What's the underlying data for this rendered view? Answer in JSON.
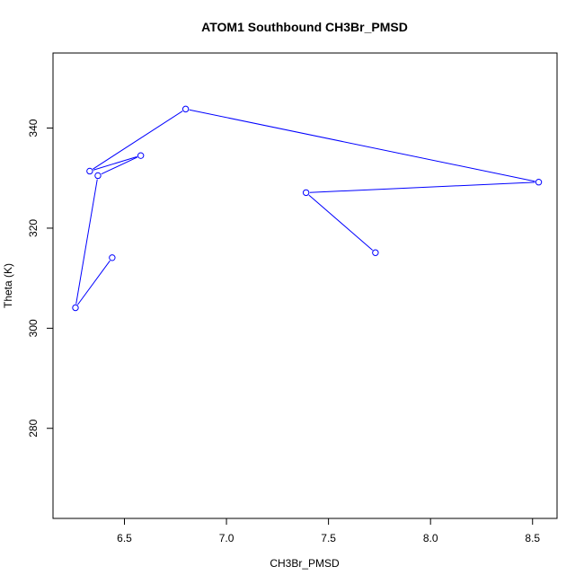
{
  "chart_data": {
    "type": "line",
    "title": "ATOM1 Southbound CH3Br_PMSD",
    "xlabel": "CH3Br_PMSD",
    "ylabel": "Theta (K)",
    "xlim": [
      6.15,
      8.62
    ],
    "ylim": [
      262,
      355
    ],
    "x_ticks": [
      6.5,
      7.0,
      7.5,
      8.0,
      8.5
    ],
    "x_tick_labels": [
      "6.5",
      "7.0",
      "7.5",
      "8.0",
      "8.5"
    ],
    "y_ticks": [
      280,
      300,
      320,
      340
    ],
    "y_tick_labels": [
      "280",
      "300",
      "320",
      "340"
    ],
    "grid": false,
    "legend": "none",
    "series": [
      {
        "color": "#0000ff",
        "marker": "open-circle",
        "points": [
          {
            "x": 6.44,
            "y": 314.1
          },
          {
            "x": 6.26,
            "y": 304.1
          },
          {
            "x": 6.37,
            "y": 330.5
          },
          {
            "x": 6.58,
            "y": 334.5
          },
          {
            "x": 6.33,
            "y": 331.4
          },
          {
            "x": 6.8,
            "y": 343.8
          },
          {
            "x": 8.53,
            "y": 329.2
          },
          {
            "x": 7.39,
            "y": 327.1
          },
          {
            "x": 7.73,
            "y": 315.1
          }
        ]
      }
    ]
  }
}
